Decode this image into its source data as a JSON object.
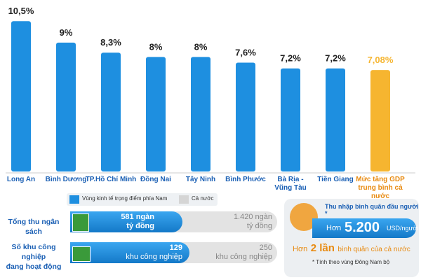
{
  "chart_data": {
    "type": "bar",
    "categories": [
      "Long An",
      "Bình Dương",
      "TP.Hồ Chí Minh",
      "Đồng Nai",
      "Tây Ninh",
      "Bình Phước",
      "Bà Rịa -\nVũng Tàu",
      "Tiền Giang",
      "Mức tăng GDP\ntrung bình cả nước"
    ],
    "values": [
      10.5,
      9,
      8.3,
      8,
      8,
      7.6,
      7.2,
      7.2,
      7.08
    ],
    "value_labels": [
      "10,5%",
      "9%",
      "8,3%",
      "8%",
      "8%",
      "7,6%",
      "7,2%",
      "7,2%",
      "7,08%"
    ],
    "colors": [
      "#1e8fe0",
      "#1e8fe0",
      "#1e8fe0",
      "#1e8fe0",
      "#1e8fe0",
      "#1e8fe0",
      "#1e8fe0",
      "#1e8fe0",
      "#f6b530"
    ],
    "ylim": [
      0,
      11
    ]
  },
  "legend": {
    "region": "Vùng kinh tế trọng điểm phía Nam",
    "country": "Cả nước"
  },
  "budget": {
    "label": "Tổng thu ngân sách",
    "region": [
      "581 ngàn",
      "tỷ đồng"
    ],
    "country": [
      "1.420 ngàn",
      "tỷ đồng"
    ]
  },
  "industrial_parks": {
    "label": "Số khu công nghiệp\nđang hoạt động",
    "region": [
      "129",
      "khu công nghiệp"
    ],
    "country": [
      "250",
      "khu công nghiệp"
    ]
  },
  "income": {
    "title": "Thu nhập bình quân đầu người",
    "asterisk": "*",
    "value": [
      "Hơn",
      "5.200",
      "USD/người"
    ],
    "comparison": [
      "Hơn",
      "2 lần",
      "bình quân của cả nước"
    ],
    "note": "* Tính theo vùng Đông Nam bộ"
  }
}
